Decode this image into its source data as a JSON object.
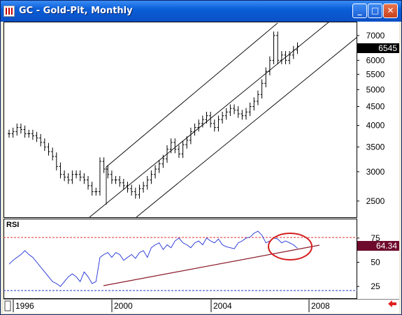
{
  "window": {
    "title": "GC - Gold-Pit, Monthly",
    "buttons": {
      "minimize": "_",
      "maximize": "□",
      "close": "✕"
    }
  },
  "price_panel": {
    "price_ticks": [
      "7000",
      "6000",
      "5500",
      "5000",
      "4500",
      "4000",
      "3500",
      "3000",
      "2500"
    ],
    "last_price_label": "6545"
  },
  "rsi_panel": {
    "label": "RSI",
    "levels": [
      "75",
      "50",
      "25"
    ],
    "last_value_label": "64.34"
  },
  "x_axis": {
    "labels": [
      "1996",
      "2000",
      "2004",
      "2008"
    ]
  },
  "colors": {
    "rsi_line": "#1f2fd8",
    "trendline": "#8b1a2a",
    "overbought_line": "#e03030",
    "oversold_line": "#2030c0",
    "highlight_ellipse": "#d41c1c",
    "rsi_badge": "#6e0a2c",
    "price_badge": "#000000",
    "scroll_arrow": "#e02020"
  },
  "icons": {
    "app": "chart-app-icon",
    "scroll": "scroll-left-arrow-icon"
  },
  "chart_data": {
    "type": "ohlc",
    "interval": "monthly",
    "y_scale": "log",
    "ylim": [
      2300,
      7500
    ],
    "price_values": [
      3800,
      3850,
      3950,
      3900,
      3800,
      3800,
      3750,
      3700,
      3600,
      3500,
      3400,
      3300,
      3100,
      2950,
      2900,
      2850,
      2950,
      2950,
      2900,
      2850,
      2750,
      2650,
      2650,
      3200,
      3050,
      2950,
      2850,
      2850,
      2800,
      2750,
      2700,
      2650,
      2600,
      2700,
      2750,
      2850,
      2950,
      3050,
      3150,
      3250,
      3450,
      3600,
      3450,
      3350,
      3550,
      3650,
      3850,
      3950,
      4050,
      4150,
      4250,
      4050,
      3950,
      4150,
      4250,
      4350,
      4450,
      4400,
      4300,
      4250,
      4350,
      4500,
      4650,
      4850,
      5200,
      5600,
      6000,
      7000,
      6000,
      6200,
      6000,
      6200,
      6400,
      6545
    ],
    "rsi_values": [
      48,
      52,
      55,
      58,
      62,
      58,
      55,
      50,
      45,
      40,
      35,
      30,
      28,
      25,
      30,
      35,
      38,
      35,
      30,
      40,
      35,
      28,
      30,
      55,
      58,
      60,
      55,
      60,
      58,
      52,
      55,
      58,
      54,
      60,
      62,
      55,
      65,
      68,
      70,
      63,
      68,
      65,
      72,
      75,
      70,
      68,
      65,
      70,
      72,
      68,
      75,
      72,
      70,
      74,
      68,
      66,
      65,
      64,
      70,
      72,
      75,
      76,
      80,
      82,
      78,
      70,
      72,
      75,
      74,
      70,
      72,
      70,
      68,
      64.34
    ],
    "rsi_levels": [
      75,
      50,
      25
    ],
    "x_ticks": [
      "1996",
      "2000",
      "2004",
      "2008"
    ]
  }
}
